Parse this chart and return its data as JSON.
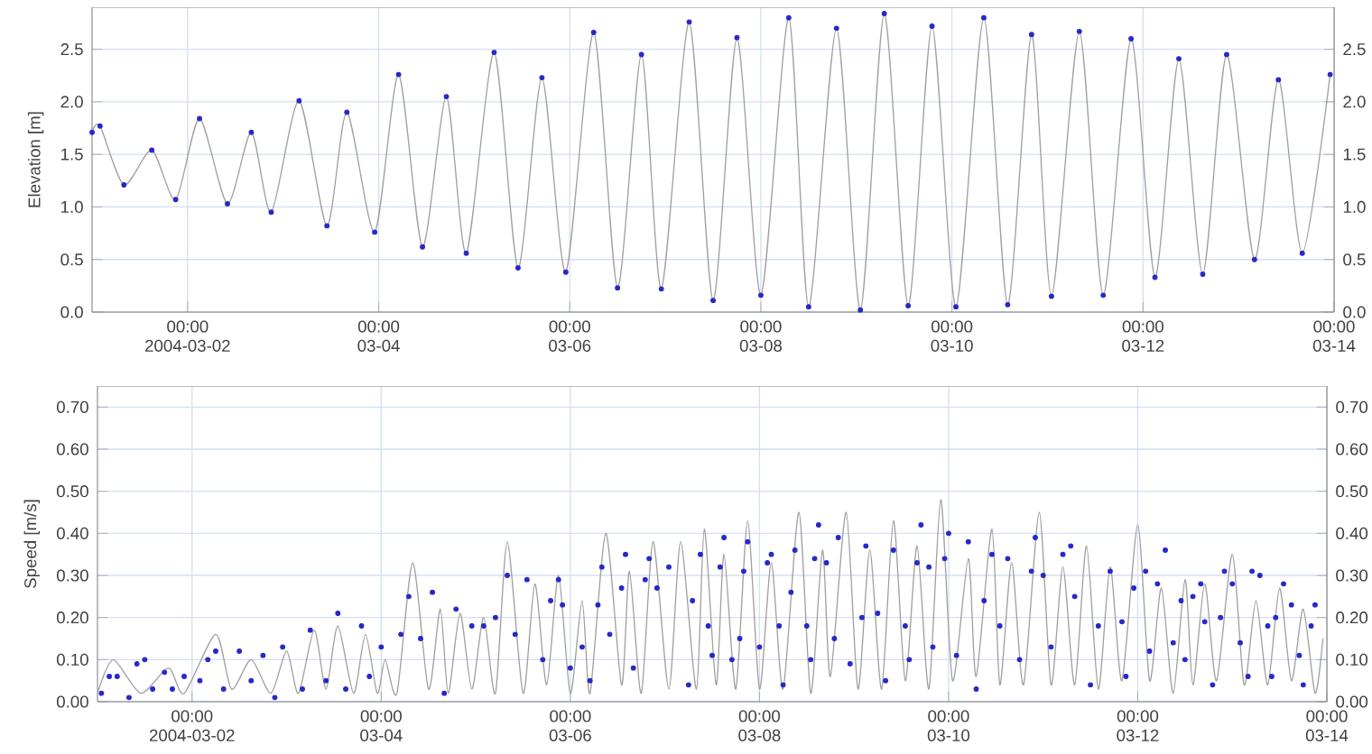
{
  "chart_data": [
    {
      "type": "line",
      "ylabel": "Elevation [m]",
      "grid": true,
      "xlim": [
        "2004-03-01T00:00",
        "2004-03-14T00:00"
      ],
      "xticks": [
        {
          "value": "2004-03-02T00:00",
          "label": "00:00 2004-03-02"
        },
        {
          "value": "2004-03-04T00:00",
          "label": "00:00 03-04"
        },
        {
          "value": "2004-03-06T00:00",
          "label": "00:00 03-06"
        },
        {
          "value": "2004-03-08T00:00",
          "label": "00:00 03-08"
        },
        {
          "value": "2004-03-10T00:00",
          "label": "00:00 03-10"
        },
        {
          "value": "2004-03-12T00:00",
          "label": "00:00 03-12"
        },
        {
          "value": "2004-03-14T00:00",
          "label": "00:00 03-14"
        }
      ],
      "ylim": [
        0,
        2.9
      ],
      "yticks": [
        {
          "value": 0,
          "label": "0.0"
        },
        {
          "value": 0.5,
          "label": "0.5"
        },
        {
          "value": 1,
          "label": "1.0"
        },
        {
          "value": 1.5,
          "label": "1.5"
        },
        {
          "value": 2,
          "label": "2.0"
        },
        {
          "value": 2.5,
          "label": "2.5"
        }
      ],
      "y2lim": [
        0,
        2.9
      ],
      "y2ticks": [
        {
          "value": 0,
          "label": "0.0"
        },
        {
          "value": 0.5,
          "label": "0.5"
        },
        {
          "value": 1,
          "label": "1.0"
        },
        {
          "value": 1.5,
          "label": "1.5"
        },
        {
          "value": 2,
          "label": "2.0"
        },
        {
          "value": 2.5,
          "label": "2.5"
        }
      ],
      "series": [
        {
          "color": "#a0a0a0",
          "x": [
            "2004-03-01T00:00",
            "2004-03-01T02:00",
            "2004-03-01T08:00",
            "2004-03-01T15:00",
            "2004-03-01T21:00",
            "2004-03-02T03:00",
            "2004-03-02T10:00",
            "2004-03-02T16:00",
            "2004-03-02T21:00",
            "2004-03-03T04:00",
            "2004-03-03T11:00",
            "2004-03-03T16:00",
            "2004-03-03T23:00",
            "2004-03-04T05:00",
            "2004-03-04T11:00",
            "2004-03-04T17:00",
            "2004-03-04T22:00",
            "2004-03-05T05:00",
            "2004-03-05T11:00",
            "2004-03-05T17:00",
            "2004-03-05T23:00",
            "2004-03-06T06:00",
            "2004-03-06T12:00",
            "2004-03-06T18:00",
            "2004-03-06T23:00",
            "2004-03-07T06:00",
            "2004-03-07T12:00",
            "2004-03-07T18:00",
            "2004-03-08T00:00",
            "2004-03-08T07:00",
            "2004-03-08T12:00",
            "2004-03-08T19:00",
            "2004-03-09T01:00",
            "2004-03-09T07:00",
            "2004-03-09T13:00",
            "2004-03-09T19:00",
            "2004-03-10T01:00",
            "2004-03-10T08:00",
            "2004-03-10T14:00",
            "2004-03-10T20:00",
            "2004-03-11T01:00",
            "2004-03-11T08:00",
            "2004-03-11T14:00",
            "2004-03-11T21:00",
            "2004-03-12T03:00",
            "2004-03-12T09:00",
            "2004-03-12T15:00",
            "2004-03-12T21:00",
            "2004-03-13T04:00",
            "2004-03-13T10:00",
            "2004-03-13T16:00",
            "2004-03-13T23:00"
          ],
          "values": [
            1.71,
            1.77,
            1.21,
            1.54,
            1.07,
            1.84,
            1.03,
            1.71,
            0.95,
            2.01,
            0.82,
            1.9,
            0.76,
            2.26,
            0.62,
            2.05,
            0.56,
            2.47,
            0.42,
            2.23,
            0.38,
            2.66,
            0.23,
            2.45,
            0.22,
            2.76,
            0.11,
            2.61,
            0.16,
            2.8,
            0.05,
            2.7,
            0.02,
            2.84,
            0.06,
            2.72,
            0.05,
            2.8,
            0.07,
            2.64,
            0.15,
            2.67,
            0.16,
            2.6,
            0.33,
            2.41,
            0.36,
            2.45,
            0.5,
            2.21,
            0.56,
            2.26
          ]
        },
        {
          "type": "scatter",
          "marker": "circle",
          "color": "#2828c8",
          "x": [
            "2004-03-01T00:00",
            "2004-03-01T02:00",
            "2004-03-01T08:00",
            "2004-03-01T15:00",
            "2004-03-01T21:00",
            "2004-03-02T03:00",
            "2004-03-02T10:00",
            "2004-03-02T16:00",
            "2004-03-02T21:00",
            "2004-03-03T04:00",
            "2004-03-03T11:00",
            "2004-03-03T16:00",
            "2004-03-03T23:00",
            "2004-03-04T05:00",
            "2004-03-04T11:00",
            "2004-03-04T17:00",
            "2004-03-04T22:00",
            "2004-03-05T05:00",
            "2004-03-05T11:00",
            "2004-03-05T17:00",
            "2004-03-05T23:00",
            "2004-03-06T06:00",
            "2004-03-06T12:00",
            "2004-03-06T18:00",
            "2004-03-06T23:00",
            "2004-03-07T06:00",
            "2004-03-07T12:00",
            "2004-03-07T18:00",
            "2004-03-08T00:00",
            "2004-03-08T07:00",
            "2004-03-08T12:00",
            "2004-03-08T19:00",
            "2004-03-09T01:00",
            "2004-03-09T07:00",
            "2004-03-09T13:00",
            "2004-03-09T19:00",
            "2004-03-10T01:00",
            "2004-03-10T08:00",
            "2004-03-10T14:00",
            "2004-03-10T20:00",
            "2004-03-11T01:00",
            "2004-03-11T08:00",
            "2004-03-11T14:00",
            "2004-03-11T21:00",
            "2004-03-12T03:00",
            "2004-03-12T09:00",
            "2004-03-12T15:00",
            "2004-03-12T21:00",
            "2004-03-13T04:00",
            "2004-03-13T10:00",
            "2004-03-13T16:00",
            "2004-03-13T23:00"
          ],
          "values": [
            1.71,
            1.77,
            1.21,
            1.54,
            1.07,
            1.84,
            1.03,
            1.71,
            0.95,
            2.01,
            0.82,
            1.9,
            0.76,
            2.26,
            0.62,
            2.05,
            0.56,
            2.47,
            0.42,
            2.23,
            0.38,
            2.66,
            0.23,
            2.45,
            0.22,
            2.76,
            0.11,
            2.61,
            0.16,
            2.8,
            0.05,
            2.7,
            0.02,
            2.84,
            0.06,
            2.72,
            0.05,
            2.8,
            0.07,
            2.64,
            0.15,
            2.67,
            0.16,
            2.6,
            0.33,
            2.41,
            0.36,
            2.45,
            0.5,
            2.21,
            0.56,
            2.26
          ]
        }
      ]
    },
    {
      "type": "line",
      "ylabel": "Speed [m/s]",
      "grid": true,
      "xlim": [
        "2004-03-01T00:00",
        "2004-03-14T00:00"
      ],
      "xticks": [
        {
          "value": "2004-03-02T00:00",
          "label": "00:00 2004-03-02"
        },
        {
          "value": "2004-03-04T00:00",
          "label": "00:00 03-04"
        },
        {
          "value": "2004-03-06T00:00",
          "label": "00:00 03-06"
        },
        {
          "value": "2004-03-08T00:00",
          "label": "00:00 03-08"
        },
        {
          "value": "2004-03-10T00:00",
          "label": "00:00 03-10"
        },
        {
          "value": "2004-03-12T00:00",
          "label": "00:00 03-12"
        },
        {
          "value": "2004-03-14T00:00",
          "label": "00:00 03-14"
        }
      ],
      "ylim": [
        0,
        0.75
      ],
      "yticks": [
        {
          "value": 0,
          "label": "0.00"
        },
        {
          "value": 0.1,
          "label": "0.10"
        },
        {
          "value": 0.2,
          "label": "0.20"
        },
        {
          "value": 0.3,
          "label": "0.30"
        },
        {
          "value": 0.4,
          "label": "0.40"
        },
        {
          "value": 0.5,
          "label": "0.50"
        },
        {
          "value": 0.6,
          "label": "0.60"
        },
        {
          "value": 0.7,
          "label": "0.70"
        }
      ],
      "y2lim": [
        0,
        0.75
      ],
      "y2ticks": [
        {
          "value": 0,
          "label": "0.00"
        },
        {
          "value": 0.1,
          "label": "0.10"
        },
        {
          "value": 0.2,
          "label": "0.20"
        },
        {
          "value": 0.3,
          "label": "0.30"
        },
        {
          "value": 0.4,
          "label": "0.40"
        },
        {
          "value": 0.5,
          "label": "0.50"
        },
        {
          "value": 0.6,
          "label": "0.60"
        },
        {
          "value": 0.7,
          "label": "0.70"
        }
      ],
      "series": [
        {
          "color": "#a0a0a0",
          "x": [
            "2004-03-01T00:00",
            "2004-03-01T04:00",
            "2004-03-01T11:00",
            "2004-03-01T18:00",
            "2004-03-01T22:00",
            "2004-03-02T06:00",
            "2004-03-02T10:00",
            "2004-03-02T15:00",
            "2004-03-02T20:00",
            "2004-03-03T00:00",
            "2004-03-03T03:00",
            "2004-03-03T07:00",
            "2004-03-03T10:00",
            "2004-03-03T13:00",
            "2004-03-03T17:00",
            "2004-03-03T20:00",
            "2004-03-03T23:00",
            "2004-03-04T01:00",
            "2004-03-04T04:00",
            "2004-03-04T08:00",
            "2004-03-04T12:00",
            "2004-03-04T15:00",
            "2004-03-04T17:00",
            "2004-03-04T20:00",
            "2004-03-04T23:00",
            "2004-03-05T02:00",
            "2004-03-05T05:00",
            "2004-03-05T08:00",
            "2004-03-05T12:00",
            "2004-03-05T15:00",
            "2004-03-05T18:00",
            "2004-03-05T21:00",
            "2004-03-06T00:00",
            "2004-03-06T03:00",
            "2004-03-06T05:00",
            "2004-03-06T09:00",
            "2004-03-06T13:00",
            "2004-03-06T15:00",
            "2004-03-06T18:00",
            "2004-03-06T21:00",
            "2004-03-07T01:00",
            "2004-03-07T04:00",
            "2004-03-07T08:00",
            "2004-03-07T10:00",
            "2004-03-07T13:00",
            "2004-03-07T15:00",
            "2004-03-07T18:00",
            "2004-03-07T21:00",
            "2004-03-08T00:00",
            "2004-03-08T03:00",
            "2004-03-08T06:00",
            "2004-03-08T10:00",
            "2004-03-08T13:00",
            "2004-03-08T16:00",
            "2004-03-08T18:00",
            "2004-03-08T22:00",
            "2004-03-09T01:00",
            "2004-03-09T04:00",
            "2004-03-09T07:00",
            "2004-03-09T10:00",
            "2004-03-09T13:00",
            "2004-03-09T16:00",
            "2004-03-09T19:00",
            "2004-03-09T22:00",
            "2004-03-10T01:00",
            "2004-03-10T05:00",
            "2004-03-10T07:00",
            "2004-03-10T11:00",
            "2004-03-10T13:00",
            "2004-03-10T16:00",
            "2004-03-10T19:00",
            "2004-03-10T23:00",
            "2004-03-11T02:00",
            "2004-03-11T05:00",
            "2004-03-11T08:00",
            "2004-03-11T11:00",
            "2004-03-11T14:00",
            "2004-03-11T17:00",
            "2004-03-11T20:00",
            "2004-03-12T00:00",
            "2004-03-12T03:00",
            "2004-03-12T06:00",
            "2004-03-12T09:00",
            "2004-03-12T12:00",
            "2004-03-12T14:00",
            "2004-03-12T17:00",
            "2004-03-12T20:00",
            "2004-03-13T00:00",
            "2004-03-13T03:00",
            "2004-03-13T06:00",
            "2004-03-13T09:00",
            "2004-03-13T12:00",
            "2004-03-13T15:00",
            "2004-03-13T18:00",
            "2004-03-13T21:00",
            "2004-03-13T23:00"
          ],
          "values": [
            0.02,
            0.1,
            0.02,
            0.08,
            0.02,
            0.16,
            0.03,
            0.1,
            0.02,
            0.12,
            0.02,
            0.17,
            0.03,
            0.18,
            0.02,
            0.16,
            0.02,
            0.1,
            0.02,
            0.33,
            0.03,
            0.22,
            0.02,
            0.21,
            0.03,
            0.2,
            0.02,
            0.38,
            0.02,
            0.28,
            0.04,
            0.3,
            0.02,
            0.24,
            0.02,
            0.4,
            0.04,
            0.31,
            0.02,
            0.38,
            0.03,
            0.38,
            0.03,
            0.41,
            0.04,
            0.35,
            0.03,
            0.43,
            0.03,
            0.33,
            0.03,
            0.45,
            0.02,
            0.36,
            0.06,
            0.45,
            0.03,
            0.36,
            0.03,
            0.43,
            0.05,
            0.37,
            0.03,
            0.48,
            0.05,
            0.34,
            0.06,
            0.41,
            0.04,
            0.33,
            0.04,
            0.45,
            0.04,
            0.32,
            0.04,
            0.37,
            0.03,
            0.32,
            0.05,
            0.42,
            0.05,
            0.27,
            0.02,
            0.29,
            0.04,
            0.28,
            0.05,
            0.35,
            0.04,
            0.24,
            0.04,
            0.27,
            0.05,
            0.22,
            0.02,
            0.15
          ]
        },
        {
          "type": "scatter",
          "marker": "circle",
          "color": "#2828c8",
          "x": [
            "2004-03-01T01:00",
            "2004-03-01T03:00",
            "2004-03-01T05:00",
            "2004-03-01T08:00",
            "2004-03-01T10:00",
            "2004-03-01T12:00",
            "2004-03-01T14:00",
            "2004-03-01T17:00",
            "2004-03-01T19:00",
            "2004-03-01T22:00",
            "2004-03-02T02:00",
            "2004-03-02T04:00",
            "2004-03-02T06:00",
            "2004-03-02T08:00",
            "2004-03-02T12:00",
            "2004-03-02T15:00",
            "2004-03-02T18:00",
            "2004-03-02T21:00",
            "2004-03-02T23:00",
            "2004-03-03T04:00",
            "2004-03-03T06:00",
            "2004-03-03T10:00",
            "2004-03-03T13:00",
            "2004-03-03T15:00",
            "2004-03-03T19:00",
            "2004-03-03T21:00",
            "2004-03-04T00:00",
            "2004-03-04T05:00",
            "2004-03-04T07:00",
            "2004-03-04T10:00",
            "2004-03-04T13:00",
            "2004-03-04T16:00",
            "2004-03-04T19:00",
            "2004-03-04T23:00",
            "2004-03-05T02:00",
            "2004-03-05T05:00",
            "2004-03-05T08:00",
            "2004-03-05T10:00",
            "2004-03-05T13:00",
            "2004-03-05T17:00",
            "2004-03-05T19:00",
            "2004-03-05T21:00",
            "2004-03-05T22:00",
            "2004-03-06T00:00",
            "2004-03-06T03:00",
            "2004-03-06T05:00",
            "2004-03-06T07:00",
            "2004-03-06T08:00",
            "2004-03-06T10:00",
            "2004-03-06T13:00",
            "2004-03-06T14:00",
            "2004-03-06T16:00",
            "2004-03-06T19:00",
            "2004-03-06T20:00",
            "2004-03-06T22:00",
            "2004-03-07T01:00",
            "2004-03-07T06:00",
            "2004-03-07T07:00",
            "2004-03-07T09:00",
            "2004-03-07T11:00",
            "2004-03-07T12:00",
            "2004-03-07T14:00",
            "2004-03-07T15:00",
            "2004-03-07T17:00",
            "2004-03-07T19:00",
            "2004-03-07T20:00",
            "2004-03-07T21:00",
            "2004-03-08T00:00",
            "2004-03-08T02:00",
            "2004-03-08T03:00",
            "2004-03-08T05:00",
            "2004-03-08T06:00",
            "2004-03-08T08:00",
            "2004-03-08T09:00",
            "2004-03-08T12:00",
            "2004-03-08T13:00",
            "2004-03-08T14:00",
            "2004-03-08T15:00",
            "2004-03-08T17:00",
            "2004-03-08T19:00",
            "2004-03-08T20:00",
            "2004-03-08T23:00",
            "2004-03-09T02:00",
            "2004-03-09T03:00",
            "2004-03-09T06:00",
            "2004-03-09T08:00",
            "2004-03-09T10:00",
            "2004-03-09T13:00",
            "2004-03-09T14:00",
            "2004-03-09T16:00",
            "2004-03-09T17:00",
            "2004-03-09T19:00",
            "2004-03-09T20:00",
            "2004-03-09T23:00",
            "2004-03-10T00:00",
            "2004-03-10T02:00",
            "2004-03-10T05:00",
            "2004-03-10T07:00",
            "2004-03-10T09:00",
            "2004-03-10T11:00",
            "2004-03-10T13:00",
            "2004-03-10T15:00",
            "2004-03-10T18:00",
            "2004-03-10T21:00",
            "2004-03-10T22:00",
            "2004-03-11T00:00",
            "2004-03-11T02:00",
            "2004-03-11T05:00",
            "2004-03-11T07:00",
            "2004-03-11T08:00",
            "2004-03-11T12:00",
            "2004-03-11T14:00",
            "2004-03-11T17:00",
            "2004-03-11T20:00",
            "2004-03-11T21:00",
            "2004-03-11T23:00",
            "2004-03-12T02:00",
            "2004-03-12T03:00",
            "2004-03-12T05:00",
            "2004-03-12T07:00",
            "2004-03-12T09:00",
            "2004-03-12T11:00",
            "2004-03-12T12:00",
            "2004-03-12T14:00",
            "2004-03-12T16:00",
            "2004-03-12T17:00",
            "2004-03-12T19:00",
            "2004-03-12T21:00",
            "2004-03-12T22:00",
            "2004-03-13T00:00",
            "2004-03-13T02:00",
            "2004-03-13T04:00",
            "2004-03-13T05:00",
            "2004-03-13T07:00",
            "2004-03-13T09:00",
            "2004-03-13T10:00",
            "2004-03-13T11:00",
            "2004-03-13T13:00",
            "2004-03-13T15:00",
            "2004-03-13T17:00",
            "2004-03-13T18:00",
            "2004-03-13T20:00",
            "2004-03-13T21:00"
          ],
          "values": [
            0.02,
            0.06,
            0.06,
            0.01,
            0.09,
            0.1,
            0.03,
            0.07,
            0.03,
            0.06,
            0.05,
            0.1,
            0.12,
            0.03,
            0.12,
            0.05,
            0.11,
            0.01,
            0.13,
            0.03,
            0.17,
            0.05,
            0.21,
            0.03,
            0.18,
            0.06,
            0.13,
            0.16,
            0.25,
            0.15,
            0.26,
            0.02,
            0.22,
            0.18,
            0.18,
            0.2,
            0.3,
            0.16,
            0.29,
            0.1,
            0.24,
            0.29,
            0.23,
            0.08,
            0.13,
            0.05,
            0.23,
            0.32,
            0.16,
            0.27,
            0.35,
            0.08,
            0.29,
            0.34,
            0.27,
            0.32,
            0.04,
            0.24,
            0.35,
            0.18,
            0.11,
            0.32,
            0.39,
            0.1,
            0.15,
            0.31,
            0.38,
            0.13,
            0.33,
            0.35,
            0.18,
            0.04,
            0.26,
            0.36,
            0.18,
            0.1,
            0.34,
            0.42,
            0.33,
            0.15,
            0.39,
            0.09,
            0.2,
            0.37,
            0.21,
            0.05,
            0.36,
            0.18,
            0.1,
            0.33,
            0.42,
            0.32,
            0.13,
            0.34,
            0.4,
            0.11,
            0.38,
            0.03,
            0.24,
            0.35,
            0.18,
            0.34,
            0.1,
            0.31,
            0.39,
            0.3,
            0.13,
            0.35,
            0.37,
            0.25,
            0.04,
            0.18,
            0.31,
            0.19,
            0.06,
            0.27,
            0.31,
            0.12,
            0.28,
            0.36,
            0.14,
            0.24,
            0.1,
            0.25,
            0.28,
            0.19,
            0.04,
            0.2,
            0.31,
            0.28,
            0.14,
            0.06,
            0.31,
            0.3,
            0.18,
            0.06,
            0.2,
            0.28,
            0.23,
            0.11,
            0.04,
            0.18,
            0.23
          ]
        }
      ]
    }
  ]
}
